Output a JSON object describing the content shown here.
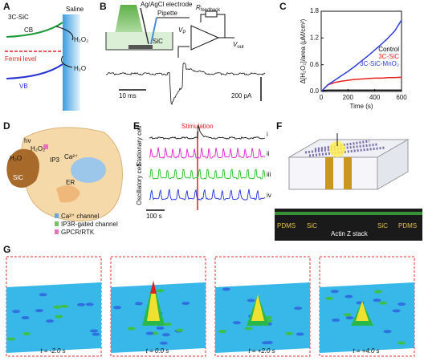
{
  "panels": {
    "A": {
      "label": "A",
      "material": "3C-SiC",
      "medium": "Saline",
      "cb": "CB",
      "fermi": "Fermi level",
      "vb": "VB",
      "product": "H₂O₂",
      "reactant": "H₂O"
    },
    "B": {
      "label": "B",
      "electrode": "Ag/AgCl electrode",
      "pipette": "Pipette",
      "rfeedback": "R",
      "rfeedback_sub": "feedback",
      "vp": "V",
      "vp_sub": "P",
      "vout": "V",
      "vout_sub": "out",
      "substrate": "SiC",
      "time_scale": "10 ms",
      "current_scale": "200 pA"
    },
    "D": {
      "label": "D",
      "light": "hν",
      "product": "H₂O₂",
      "reactant": "H₂O",
      "material": "SiC",
      "ip3": "IP3",
      "ion": "Ca²⁺",
      "er": "ER",
      "legend": [
        "Ca²⁺ channel",
        "IP3R-gated channel",
        "GPCR/RTK"
      ]
    },
    "E": {
      "label": "E",
      "stimulation": "Stimulation",
      "stationary": "Stationary cell",
      "oscillatory": "Oscillatory cell",
      "traces": [
        "i",
        "ii",
        "iii",
        "iv"
      ],
      "time_scale": "100 s"
    },
    "F": {
      "label": "F",
      "strip": [
        "PDMS",
        "SiC",
        "Actin Z stack",
        "SiC",
        "PDMS"
      ]
    },
    "G": {
      "label": "G",
      "times": [
        "t = -2.0 s",
        "t = 0.0 s",
        "t = +2.0 s",
        "t = +4.0 s"
      ]
    }
  },
  "chart_data": {
    "type": "line",
    "label": "C",
    "xlabel": "Time (s)",
    "ylabel": "Δ[H₂O₂]/area (μM/cm²)",
    "x": [
      0,
      50,
      100,
      150,
      200,
      250,
      300,
      350,
      400,
      450,
      500,
      550,
      600
    ],
    "series": [
      {
        "name": "Control",
        "color": "#000000",
        "values": [
          0.02,
          0.03,
          0.03,
          0.03,
          0.03,
          0.03,
          0.03,
          0.03,
          0.03,
          0.03,
          0.03,
          0.03,
          0.03
        ]
      },
      {
        "name": "3C-SiC",
        "color": "#e8231f",
        "values": [
          0,
          0.15,
          0.2,
          0.23,
          0.25,
          0.27,
          0.28,
          0.29,
          0.3,
          0.3,
          0.31,
          0.31,
          0.32
        ]
      },
      {
        "name": "3C-SiC-MnO₂",
        "color": "#2f3ed8",
        "values": [
          0,
          0.15,
          0.25,
          0.35,
          0.45,
          0.56,
          0.68,
          0.8,
          0.93,
          1.06,
          1.2,
          1.36,
          1.6
        ]
      }
    ],
    "xlim": [
      0,
      600
    ],
    "xticks": [
      0,
      200,
      400,
      600
    ],
    "ylim": [
      0,
      1.8
    ],
    "yticks": [
      {
        "value": 0,
        "label": "0.0"
      },
      {
        "value": 0.6,
        "label": "0.6"
      },
      {
        "value": 1.2,
        "label": "1.2"
      },
      {
        "value": 1.8,
        "label": "1.8"
      }
    ],
    "legend": "right"
  }
}
